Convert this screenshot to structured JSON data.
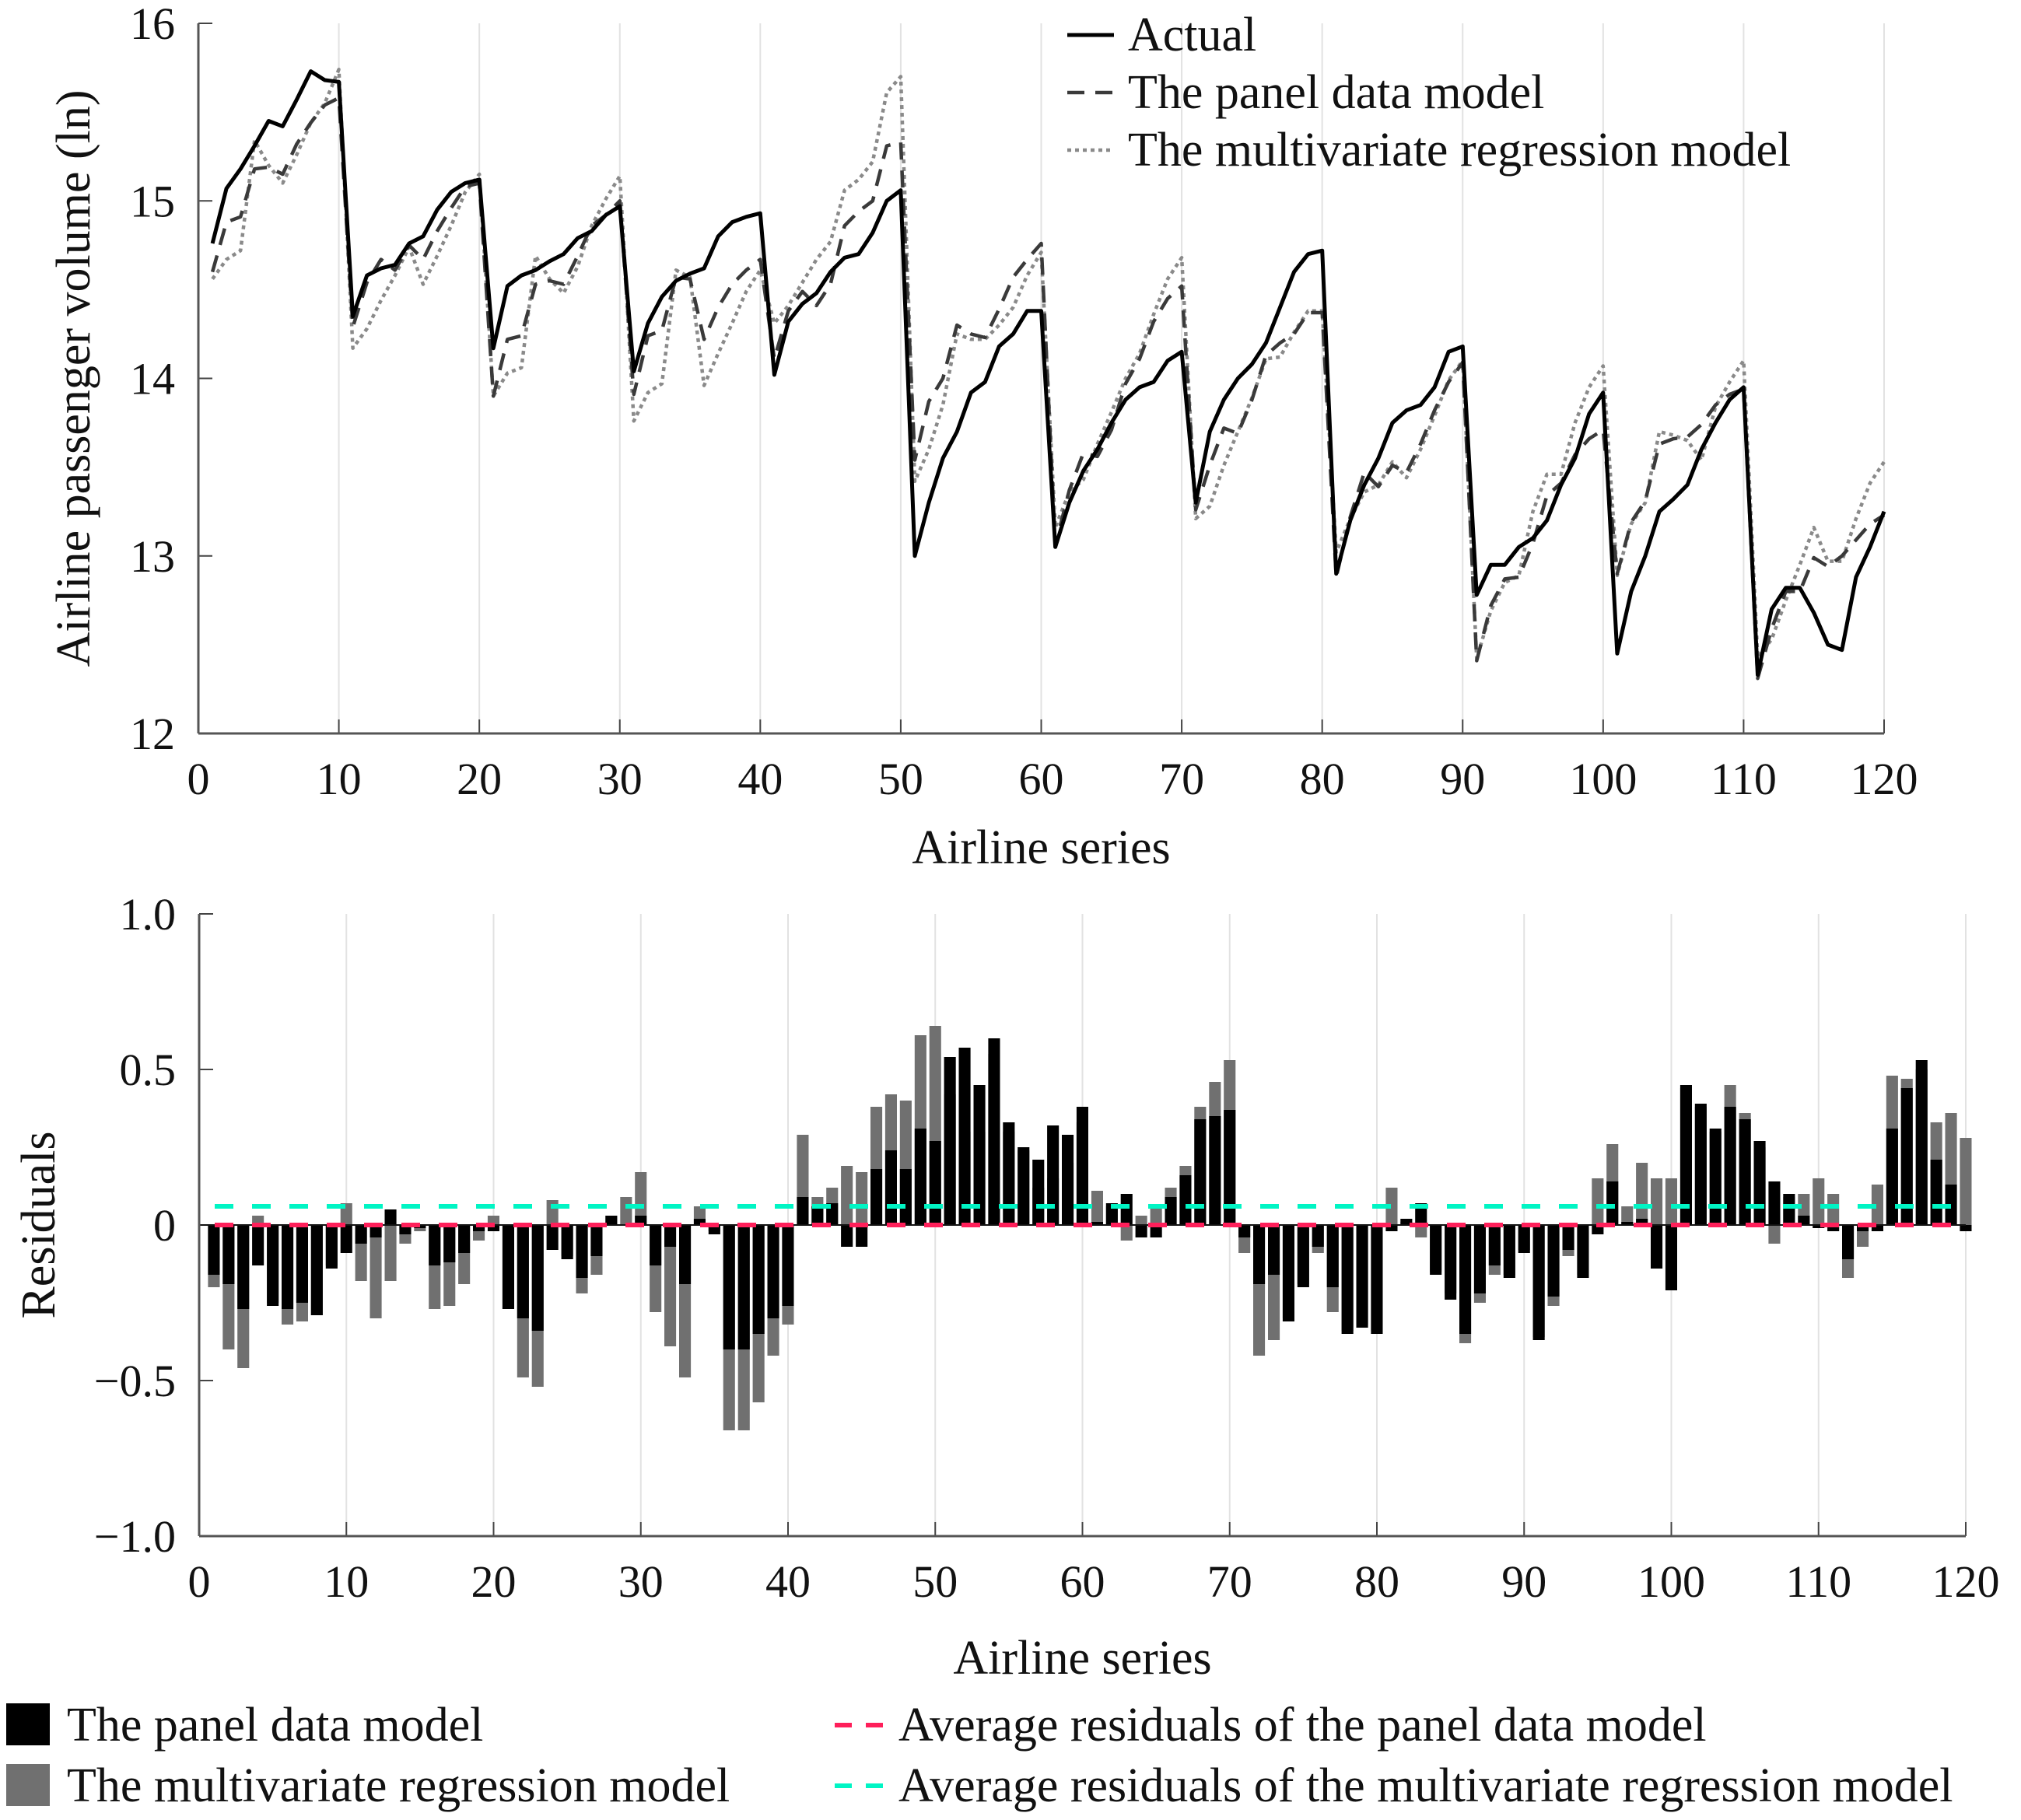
{
  "chart_data": [
    {
      "type": "line",
      "title": "",
      "xlabel": "Airline series",
      "ylabel": "Airline passenger volume (ln)",
      "xlim": [
        0,
        120
      ],
      "ylim": [
        12,
        16
      ],
      "x_ticks": [
        "0",
        "10",
        "20",
        "30",
        "40",
        "50",
        "60",
        "70",
        "80",
        "90",
        "100",
        "110",
        "120"
      ],
      "y_ticks": [
        "12",
        "13",
        "14",
        "15",
        "16"
      ],
      "grid": "vertical lines at x ticks",
      "legend_position": "top-right",
      "x": [
        1,
        2,
        3,
        4,
        5,
        6,
        7,
        8,
        9,
        10,
        11,
        12,
        13,
        14,
        15,
        16,
        17,
        18,
        19,
        20,
        21,
        22,
        23,
        24,
        25,
        26,
        27,
        28,
        29,
        30,
        31,
        32,
        33,
        34,
        35,
        36,
        37,
        38,
        39,
        40,
        41,
        42,
        43,
        44,
        45,
        46,
        47,
        48,
        49,
        50,
        51,
        52,
        53,
        54,
        55,
        56,
        57,
        58,
        59,
        60,
        61,
        62,
        63,
        64,
        65,
        66,
        67,
        68,
        69,
        70,
        71,
        72,
        73,
        74,
        75,
        76,
        77,
        78,
        79,
        80,
        81,
        82,
        83,
        84,
        85,
        86,
        87,
        88,
        89,
        90,
        91,
        92,
        93,
        94,
        95,
        96,
        97,
        98,
        99,
        100,
        101,
        102,
        103,
        104,
        105,
        106,
        107,
        108,
        109,
        110,
        111,
        112,
        113,
        114,
        115,
        116,
        117,
        118,
        119,
        120
      ],
      "series": [
        {
          "name": "Actual",
          "style": "solid",
          "color": "#000000",
          "values": [
            14.76,
            15.07,
            15.18,
            15.31,
            15.45,
            15.42,
            15.57,
            15.73,
            15.68,
            15.67,
            14.35,
            14.58,
            14.62,
            14.64,
            14.76,
            14.8,
            14.95,
            15.05,
            15.1,
            15.12,
            14.17,
            14.52,
            14.58,
            14.61,
            14.66,
            14.7,
            14.79,
            14.83,
            14.92,
            14.97,
            14.04,
            14.31,
            14.46,
            14.55,
            14.59,
            14.62,
            14.8,
            14.88,
            14.91,
            14.93,
            14.02,
            14.32,
            14.42,
            14.48,
            14.6,
            14.68,
            14.7,
            14.82,
            15.0,
            15.06,
            13.0,
            13.3,
            13.55,
            13.7,
            13.92,
            13.98,
            14.18,
            14.25,
            14.38,
            14.38,
            13.05,
            13.3,
            13.48,
            13.6,
            13.75,
            13.88,
            13.95,
            13.98,
            14.1,
            14.15,
            13.3,
            13.7,
            13.88,
            14.0,
            14.08,
            14.2,
            14.4,
            14.6,
            14.7,
            14.72,
            12.9,
            13.2,
            13.4,
            13.55,
            13.75,
            13.82,
            13.85,
            13.95,
            14.15,
            14.18,
            12.78,
            12.95,
            12.95,
            13.05,
            13.1,
            13.2,
            13.4,
            13.55,
            13.8,
            13.92,
            12.45,
            12.8,
            13.0,
            13.25,
            13.32,
            13.4,
            13.6,
            13.75,
            13.88,
            13.95,
            12.33,
            12.7,
            12.82,
            12.82,
            12.68,
            12.5,
            12.47,
            12.88,
            13.05,
            13.25
          ]
        },
        {
          "name": "The panel data model",
          "style": "dashed",
          "color": "#3a3a3a",
          "values": [
            14.6,
            14.88,
            14.91,
            15.18,
            15.19,
            15.15,
            15.32,
            15.44,
            15.54,
            15.58,
            14.29,
            14.54,
            14.67,
            14.61,
            14.75,
            14.67,
            14.83,
            14.96,
            15.08,
            15.1,
            13.9,
            14.22,
            14.24,
            14.53,
            14.55,
            14.53,
            14.69,
            14.86,
            14.92,
            15.0,
            13.91,
            14.24,
            14.27,
            14.57,
            14.56,
            14.22,
            14.4,
            14.53,
            14.61,
            14.67,
            14.11,
            14.38,
            14.49,
            14.41,
            14.53,
            14.86,
            14.94,
            15.0,
            15.31,
            15.33,
            13.54,
            13.87,
            14.0,
            14.3,
            14.25,
            14.23,
            14.39,
            14.57,
            14.67,
            14.76,
            13.06,
            13.37,
            13.58,
            13.56,
            13.71,
            13.97,
            14.11,
            14.32,
            14.45,
            14.52,
            13.26,
            13.51,
            13.72,
            13.69,
            13.88,
            14.13,
            14.2,
            14.25,
            14.37,
            14.37,
            12.88,
            13.22,
            13.47,
            13.39,
            13.51,
            13.47,
            13.63,
            13.82,
            13.98,
            14.09,
            12.41,
            12.72,
            12.87,
            12.88,
            13.07,
            13.34,
            13.41,
            13.57,
            13.66,
            13.71,
            12.9,
            13.19,
            13.31,
            13.63,
            13.66,
            13.67,
            13.74,
            13.85,
            13.91,
            13.94,
            12.31,
            12.59,
            12.8,
            12.8,
            12.99,
            12.94,
            13.0,
            13.09,
            13.18,
            13.23
          ]
        },
        {
          "name": "The multivariate regression model",
          "style": "dotted",
          "color": "#8a8a8a",
          "values": [
            14.56,
            14.67,
            14.72,
            15.34,
            15.2,
            15.1,
            15.26,
            15.44,
            15.55,
            15.74,
            14.17,
            14.28,
            14.44,
            14.58,
            14.74,
            14.53,
            14.69,
            14.86,
            15.05,
            15.15,
            13.9,
            14.03,
            14.06,
            14.69,
            14.56,
            14.48,
            14.63,
            14.86,
            15.01,
            15.14,
            13.76,
            13.92,
            13.97,
            14.61,
            14.57,
            13.96,
            14.14,
            14.31,
            14.49,
            14.61,
            14.31,
            14.41,
            14.54,
            14.67,
            14.77,
            15.06,
            15.12,
            15.22,
            15.61,
            15.7,
            13.42,
            13.6,
            13.85,
            14.25,
            14.22,
            14.22,
            14.3,
            14.4,
            14.58,
            14.71,
            13.16,
            13.36,
            13.43,
            13.63,
            13.81,
            14.0,
            14.14,
            14.36,
            14.56,
            14.68,
            13.21,
            13.28,
            13.51,
            13.7,
            13.89,
            14.11,
            14.12,
            14.26,
            14.38,
            14.38,
            13.02,
            13.21,
            13.36,
            13.4,
            13.53,
            13.44,
            13.6,
            13.79,
            13.99,
            14.1,
            12.42,
            12.69,
            12.85,
            12.89,
            13.25,
            13.46,
            13.46,
            13.75,
            13.95,
            14.07,
            12.89,
            13.18,
            13.3,
            13.7,
            13.68,
            13.65,
            13.54,
            13.84,
            13.98,
            14.1,
            12.43,
            12.53,
            12.75,
            12.95,
            13.16,
            12.97,
            12.97,
            13.21,
            13.41,
            13.53
          ]
        }
      ]
    },
    {
      "type": "bar",
      "title": "",
      "xlabel": "Airline series",
      "ylabel": "Residuals",
      "xlim": [
        0,
        120
      ],
      "ylim": [
        -1.0,
        1.0
      ],
      "x_ticks": [
        "0",
        "10",
        "20",
        "30",
        "40",
        "50",
        "60",
        "70",
        "80",
        "90",
        "100",
        "110",
        "120"
      ],
      "y_ticks": [
        "1.0",
        "0.5",
        "0",
        "−0.5",
        "−1.0"
      ],
      "y_tick_values": [
        1.0,
        0.5,
        0,
        -0.5,
        -1.0
      ],
      "grid": "vertical lines at x ticks",
      "legend_position": "bottom",
      "x": [
        1,
        2,
        3,
        4,
        5,
        6,
        7,
        8,
        9,
        10,
        11,
        12,
        13,
        14,
        15,
        16,
        17,
        18,
        19,
        20,
        21,
        22,
        23,
        24,
        25,
        26,
        27,
        28,
        29,
        30,
        31,
        32,
        33,
        34,
        35,
        36,
        37,
        38,
        39,
        40,
        41,
        42,
        43,
        44,
        45,
        46,
        47,
        48,
        49,
        50,
        51,
        52,
        53,
        54,
        55,
        56,
        57,
        58,
        59,
        60,
        61,
        62,
        63,
        64,
        65,
        66,
        67,
        68,
        69,
        70,
        71,
        72,
        73,
        74,
        75,
        76,
        77,
        78,
        79,
        80,
        81,
        82,
        83,
        84,
        85,
        86,
        87,
        88,
        89,
        90,
        91,
        92,
        93,
        94,
        95,
        96,
        97,
        98,
        99,
        100,
        101,
        102,
        103,
        104,
        105,
        106,
        107,
        108,
        109,
        110,
        111,
        112,
        113,
        114,
        115,
        116,
        117,
        118,
        119,
        120
      ],
      "series": [
        {
          "name": "The multivariate regression model",
          "color": "#707070",
          "values": [
            -0.2,
            -0.4,
            -0.46,
            0.03,
            -0.25,
            -0.32,
            -0.31,
            -0.29,
            -0.13,
            0.07,
            -0.18,
            -0.3,
            -0.18,
            -0.06,
            -0.02,
            -0.27,
            -0.26,
            -0.19,
            -0.05,
            0.03,
            -0.27,
            -0.49,
            -0.52,
            0.08,
            -0.1,
            -0.22,
            -0.16,
            0.03,
            0.09,
            0.17,
            -0.28,
            -0.39,
            -0.49,
            0.06,
            -0.02,
            -0.66,
            -0.66,
            -0.57,
            -0.42,
            -0.32,
            0.29,
            0.09,
            0.12,
            0.19,
            0.17,
            0.38,
            0.42,
            0.4,
            0.61,
            0.64,
            0.42,
            0.3,
            0.3,
            0.55,
            0.3,
            0.24,
            0.12,
            0.15,
            0.2,
            0.33,
            0.11,
            0.06,
            -0.05,
            0.03,
            0.06,
            0.12,
            0.19,
            0.38,
            0.46,
            0.53,
            -0.09,
            -0.42,
            -0.37,
            -0.3,
            -0.19,
            -0.09,
            -0.28,
            -0.34,
            -0.32,
            -0.34,
            0.12,
            0.01,
            -0.04,
            -0.15,
            -0.22,
            -0.38,
            -0.25,
            -0.16,
            -0.16,
            -0.08,
            -0.36,
            -0.26,
            -0.1,
            -0.16,
            0.15,
            0.26,
            0.06,
            0.2,
            0.15,
            0.15,
            0.44,
            0.38,
            0.3,
            0.45,
            0.36,
            0.25,
            -0.06,
            0.09,
            0.1,
            0.15,
            0.1,
            -0.17,
            -0.07,
            0.13,
            0.48,
            0.47,
            0.5,
            0.33,
            0.36,
            0.28
          ]
        },
        {
          "name": "The panel data model",
          "color": "#000000",
          "values": [
            -0.16,
            -0.19,
            -0.27,
            -0.13,
            -0.26,
            -0.27,
            -0.25,
            -0.29,
            -0.14,
            -0.09,
            -0.06,
            -0.04,
            0.05,
            -0.03,
            -0.01,
            -0.13,
            -0.12,
            -0.09,
            -0.02,
            -0.02,
            -0.27,
            -0.3,
            -0.34,
            -0.08,
            -0.11,
            -0.17,
            -0.1,
            0.03,
            0.0,
            0.03,
            -0.13,
            -0.07,
            -0.19,
            0.02,
            -0.03,
            -0.4,
            -0.4,
            -0.35,
            -0.3,
            -0.26,
            0.09,
            0.06,
            0.07,
            -0.07,
            -0.07,
            0.18,
            0.24,
            0.18,
            0.31,
            0.27,
            0.54,
            0.57,
            0.45,
            0.6,
            0.33,
            0.25,
            0.21,
            0.32,
            0.29,
            0.38,
            0.01,
            0.07,
            0.1,
            -0.04,
            -0.04,
            0.09,
            0.16,
            0.34,
            0.35,
            0.37,
            -0.04,
            -0.19,
            -0.16,
            -0.31,
            -0.2,
            -0.07,
            -0.2,
            -0.35,
            -0.33,
            -0.35,
            -0.02,
            0.02,
            0.07,
            -0.16,
            -0.24,
            -0.35,
            -0.22,
            -0.13,
            -0.17,
            -0.09,
            -0.37,
            -0.23,
            -0.08,
            -0.17,
            -0.03,
            0.14,
            0.01,
            0.02,
            -0.14,
            -0.21,
            0.45,
            0.39,
            0.31,
            0.38,
            0.34,
            0.27,
            0.14,
            0.1,
            0.03,
            -0.01,
            -0.02,
            -0.11,
            -0.02,
            -0.02,
            0.31,
            0.44,
            0.53,
            0.21,
            0.13,
            -0.02
          ]
        }
      ],
      "reference_lines": [
        {
          "name": "Average residuals of the panel data model",
          "value": 0.0,
          "color": "#ff1f5a",
          "style": "dashed"
        },
        {
          "name": "Average residuals of the multivariate regression model",
          "value": 0.06,
          "color": "#00f5c4",
          "style": "dashed"
        }
      ]
    }
  ]
}
